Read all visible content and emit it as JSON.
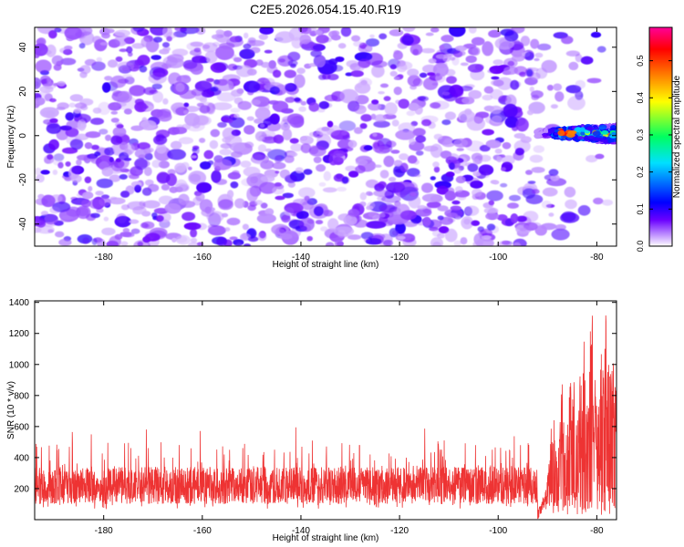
{
  "title": "C2E5.2026.054.15.40.R19",
  "colors": {
    "noise_light": "#b8a0f0",
    "noise_mid": "#8a52f2",
    "noise_dark": "#5a1ee0",
    "snr_line": "#ee3333",
    "axis": "#000000"
  },
  "chart_data": [
    {
      "type": "heatmap",
      "title": "C2E5.2026.054.15.40.R19",
      "xlabel": "Height of straight line (km)",
      "ylabel": "Frequency (Hz)",
      "xlim": [
        -194,
        -76
      ],
      "ylim": [
        -50,
        49
      ],
      "xticks": [
        -180,
        -160,
        -140,
        -120,
        -100,
        -80
      ],
      "xtick_labels": [
        "-180",
        "-160",
        "-140",
        "-120",
        "-100",
        "-80"
      ],
      "yticks": [
        -40,
        -20,
        0,
        20,
        40
      ],
      "ytick_labels": [
        "-40",
        "-20",
        "0",
        "20",
        "40"
      ],
      "colorbar": {
        "label": "Normalized spectral amplitude",
        "range": [
          0.0,
          0.59
        ],
        "ticks": [
          0.0,
          0.1,
          0.2,
          0.3,
          0.4,
          0.5
        ],
        "tick_labels": [
          "0.0",
          "0.1",
          "0.2",
          "0.3",
          "0.4",
          "0.5"
        ],
        "colormap": [
          "#ffffff",
          "#6a00ff",
          "#0000ff",
          "#00e0ff",
          "#00ff60",
          "#ffff00",
          "#ff8000",
          "#ff0000",
          "#ff0099"
        ]
      },
      "background": {
        "typical_amplitude": [
          0.02,
          0.1
        ],
        "fade_start_km": -100,
        "fade_end_km": -76
      },
      "signal_band": {
        "height_km": [
          -92,
          -76
        ],
        "frequency_hz": 1,
        "bandwidth_hz": 6,
        "peak_amplitude": 0.55,
        "peak_height_km": -86
      }
    },
    {
      "type": "line",
      "xlabel": "Height of straight line (km)",
      "ylabel": "SNR (10 * v/v)",
      "xlim": [
        -194,
        -76
      ],
      "ylim": [
        0,
        1410
      ],
      "xticks": [
        -180,
        -160,
        -140,
        -120,
        -100,
        -80
      ],
      "xtick_labels": [
        "-180",
        "-160",
        "-140",
        "-120",
        "-100",
        "-80"
      ],
      "yticks": [
        200,
        400,
        600,
        800,
        1000,
        1200,
        1400
      ],
      "ytick_labels": [
        "200",
        "400",
        "600",
        "800",
        "1000",
        "1200",
        "1400"
      ],
      "series": [
        {
          "name": "SNR",
          "baseline_mean": 220,
          "baseline_range": [
            70,
            420
          ],
          "occasional_spikes_max": 620,
          "rise_start_km": -92,
          "peaks": [
            {
              "x": -89,
              "y": 700
            },
            {
              "x": -87,
              "y": 900
            },
            {
              "x": -85,
              "y": 1050
            },
            {
              "x": -83,
              "y": 1300
            },
            {
              "x": -81,
              "y": 1370
            },
            {
              "x": -79,
              "y": 1340
            },
            {
              "x": -78,
              "y": 1410
            },
            {
              "x": -76.5,
              "y": 1150
            }
          ]
        }
      ]
    }
  ]
}
